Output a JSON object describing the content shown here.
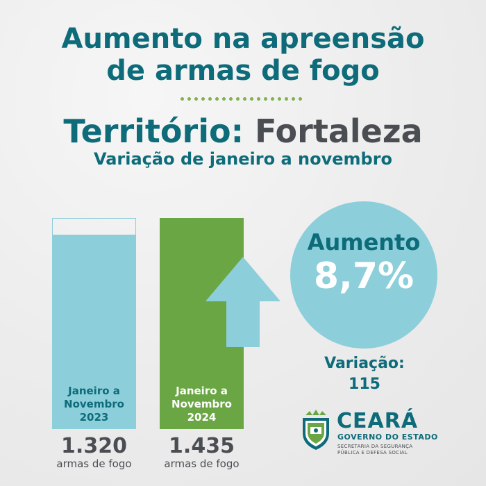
{
  "header": {
    "title_line1": "Aumento na apreensão",
    "title_line2": "de armas de fogo",
    "territory_label": "Território:",
    "territory_name": "Fortaleza",
    "subtitle": "Variação de janeiro a novembro"
  },
  "chart_data": {
    "type": "bar",
    "categories": [
      "Janeiro a Novembro 2023",
      "Janeiro a Novembro 2024"
    ],
    "series": [
      {
        "values": [
          1320,
          1435
        ]
      }
    ],
    "bar_label_lines": [
      [
        "Janeiro a",
        "Novembro",
        "2023"
      ],
      [
        "Janeiro a",
        "Novembro",
        "2024"
      ]
    ],
    "value_labels": [
      "1.320",
      "1.435"
    ],
    "unit_label": "armas de fogo",
    "ylim": [
      0,
      1435
    ],
    "colors": [
      "#8ccfda",
      "#6ba644"
    ],
    "outline_color": "#8ccfda"
  },
  "highlight": {
    "label": "Aumento",
    "value": "8,7%",
    "circle_color": "#8ccfda",
    "arrow_icon": "up-arrow-icon"
  },
  "variation": {
    "label": "Variação:",
    "value": "115"
  },
  "logo": {
    "name": "CEARÁ",
    "subtitle": "GOVERNO DO ESTADO",
    "secretariat_line1": "SECRETARIA DA SEGURANÇA",
    "secretariat_line2": "PÚBLICA E DEFESA SOCIAL",
    "emblem_icon": "ceara-coat-of-arms-icon"
  },
  "colors": {
    "primary": "#0d6b7a",
    "text_dark": "#4a4d52",
    "accent_green": "#6ba644",
    "accent_light_blue": "#8ccfda",
    "dots": "#7fb24a"
  }
}
